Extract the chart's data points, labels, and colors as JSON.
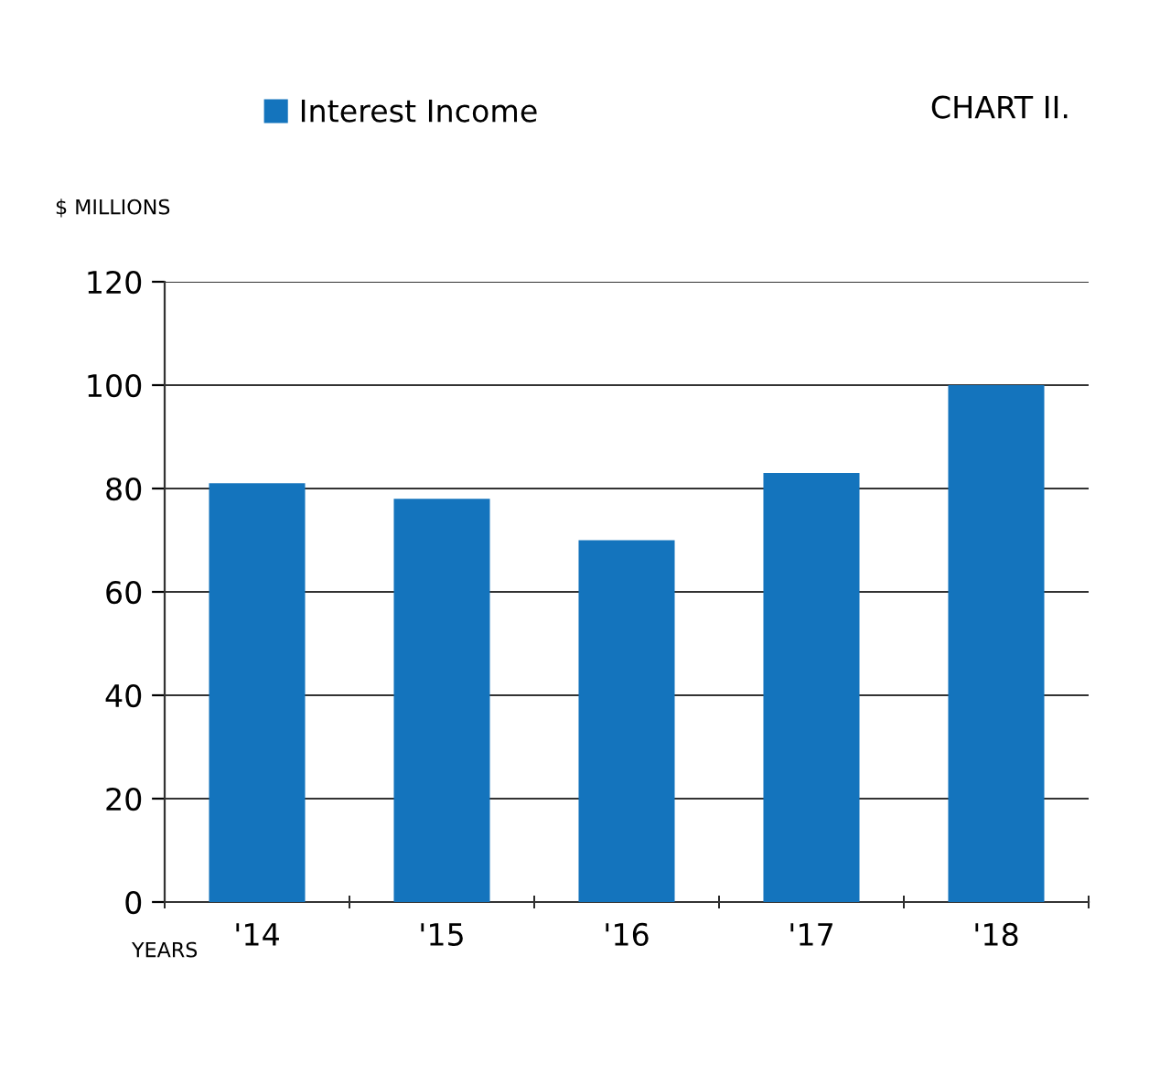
{
  "chart_data": {
    "type": "bar",
    "title": "CHART II.",
    "ylabel": "$ MILLIONS",
    "xlabel": "YEARS",
    "categories": [
      "'14",
      "'15",
      "'16",
      "'17",
      "'18"
    ],
    "series": [
      {
        "name": "Interest Income",
        "color": "#1474bd",
        "values": [
          81,
          78,
          70,
          83,
          100
        ]
      }
    ],
    "ylim": [
      0,
      120
    ],
    "yticks": [
      0,
      20,
      40,
      60,
      80,
      100,
      120
    ],
    "grid": "y",
    "legend": "top left"
  }
}
